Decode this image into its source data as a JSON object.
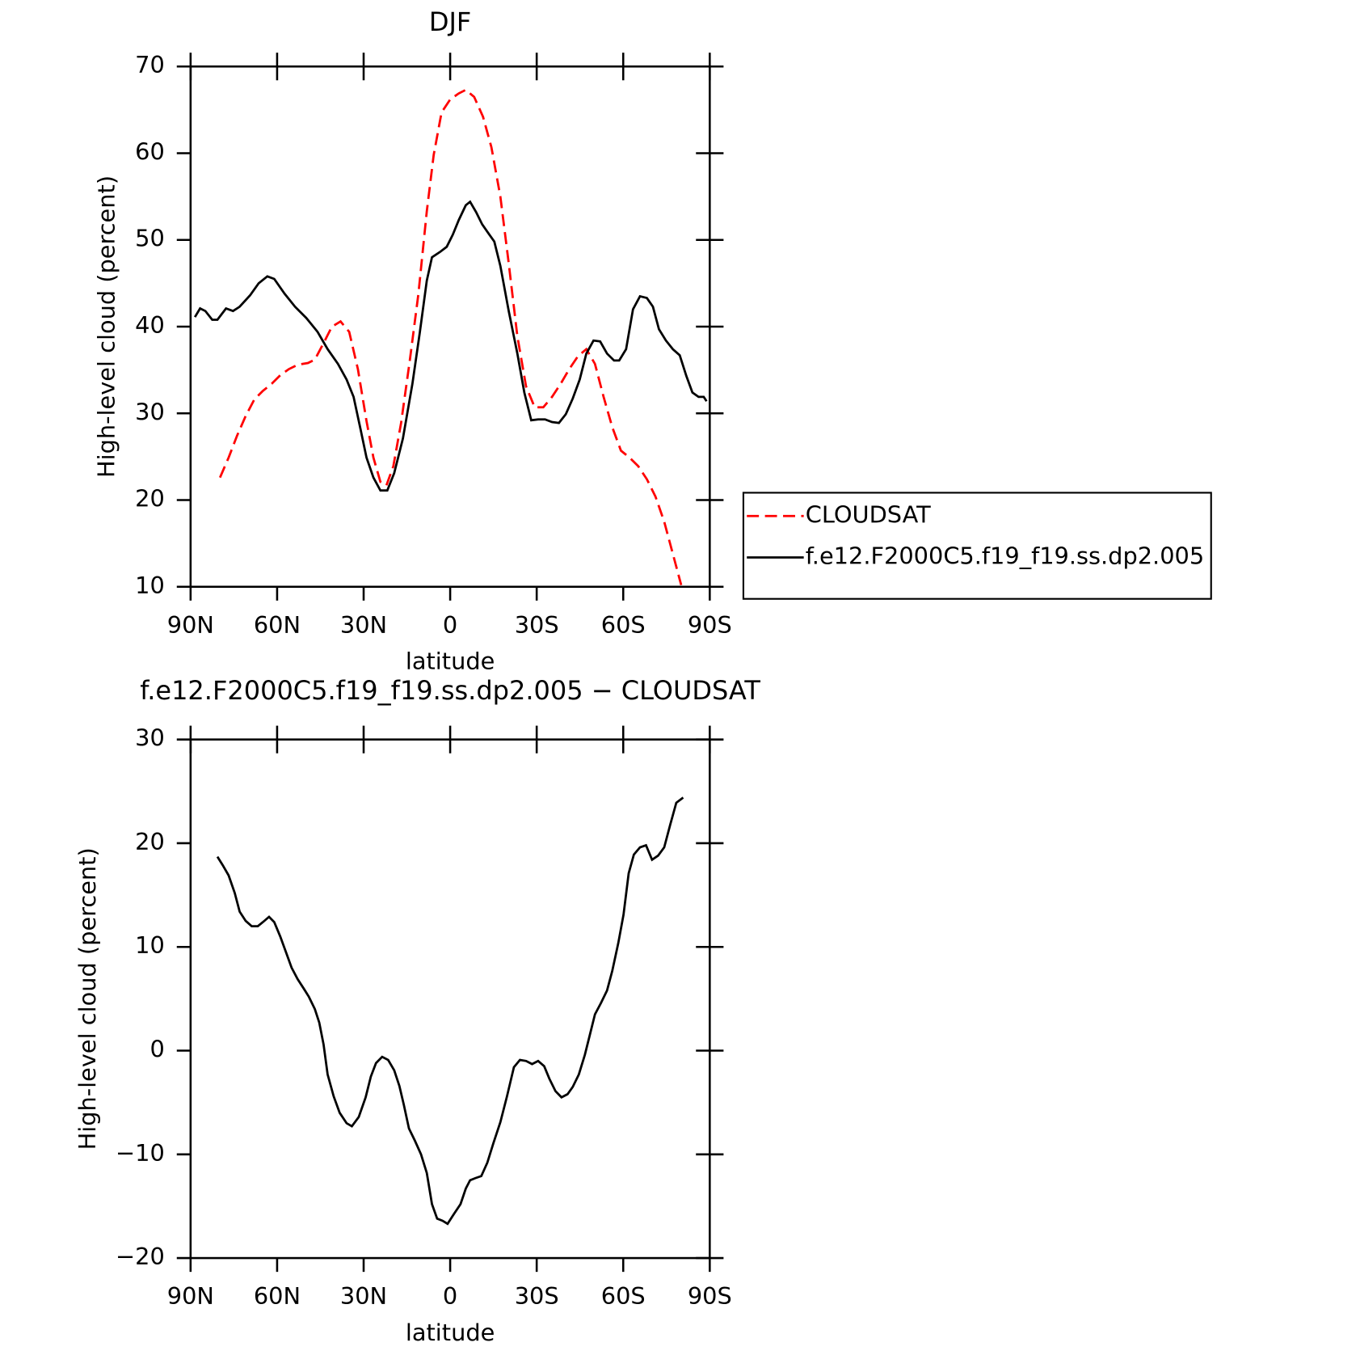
{
  "chart_data": [
    {
      "type": "line",
      "title": "DJF",
      "xlabel": "latitude",
      "ylabel": "High-level cloud (percent)",
      "xlim": [
        90,
        -90
      ],
      "xticks": [
        {
          "value": 90,
          "label": "90N"
        },
        {
          "value": 60,
          "label": "60N"
        },
        {
          "value": 30,
          "label": "30N"
        },
        0,
        {
          "value": -30,
          "label": "30S"
        },
        {
          "value": -60,
          "label": "60S"
        },
        {
          "value": -90,
          "label": "90S"
        }
      ],
      "ylim": [
        10,
        70
      ],
      "yticks": [
        10,
        20,
        30,
        40,
        50,
        60,
        70
      ],
      "legend": "right",
      "series": [
        {
          "name": "CLOUDSAT",
          "color": "#ff0000",
          "style": "dashed",
          "x": [
            79.8,
            76.8,
            73.9,
            70.9,
            67.9,
            64.9,
            61.9,
            58.9,
            55.9,
            52.9,
            49.3,
            46.9,
            43.9,
            41.0,
            38.0,
            35.0,
            32.0,
            29.0,
            26.6,
            24.2,
            22.1,
            19.7,
            17.0,
            14.0,
            11.0,
            8.1,
            5.7,
            3.0,
            0.0,
            -3.0,
            -5.4,
            -8.3,
            -11.4,
            -14.3,
            -17.4,
            -20.3,
            -23.3,
            -26.3,
            -29.3,
            -32.3,
            -35.3,
            -38.3,
            -41.3,
            -44.3,
            -47.2,
            -50.2,
            -53.2,
            -56.2,
            -59.2,
            -62.2,
            -65.2,
            -68.2,
            -71.2,
            -74.2,
            -77.2,
            -80.1
          ],
          "values": [
            22.6,
            24.9,
            27.4,
            29.7,
            31.6,
            32.6,
            33.4,
            34.4,
            35.1,
            35.6,
            35.8,
            36.2,
            38.1,
            40.0,
            40.6,
            39.4,
            35.1,
            29.1,
            24.9,
            22.1,
            21.7,
            23.9,
            28.9,
            36.1,
            43.8,
            53.3,
            59.8,
            64.7,
            66.2,
            66.9,
            67.3,
            66.5,
            64.2,
            60.7,
            55.0,
            47.3,
            38.9,
            33.1,
            30.7,
            30.7,
            31.9,
            33.4,
            35.1,
            36.6,
            37.4,
            35.7,
            31.9,
            28.4,
            25.7,
            24.9,
            23.9,
            22.4,
            20.4,
            17.5,
            13.8,
            10.2
          ]
        },
        {
          "name": "f.e12.F2000C5.f19_f19.ss.dp2.005",
          "color": "#000000",
          "style": "solid",
          "x": [
            88.5,
            86.7,
            84.9,
            82.5,
            80.7,
            77.7,
            75.3,
            73.0,
            69.4,
            66.4,
            63.4,
            61.0,
            57.4,
            53.8,
            49.9,
            46.0,
            42.5,
            38.9,
            35.9,
            33.5,
            31.1,
            29.0,
            26.6,
            24.2,
            21.8,
            19.4,
            16.4,
            13.1,
            10.5,
            8.1,
            6.3,
            3.6,
            1.2,
            -0.9,
            -3.0,
            -5.4,
            -6.9,
            -9.0,
            -11.1,
            -13.2,
            -15.3,
            -17.4,
            -20.3,
            -23.3,
            -25.7,
            -28.1,
            -30.5,
            -32.9,
            -35.3,
            -37.7,
            -40.1,
            -42.5,
            -44.9,
            -47.2,
            -49.7,
            -52.0,
            -54.4,
            -56.8,
            -58.6,
            -61.0,
            -63.4,
            -65.8,
            -68.2,
            -70.3,
            -72.4,
            -74.8,
            -77.2,
            -79.6,
            -81.9,
            -84.0,
            -86.1,
            -87.9,
            -88.9
          ],
          "values": [
            41.1,
            42.1,
            41.8,
            40.8,
            40.8,
            42.1,
            41.8,
            42.3,
            43.6,
            45.0,
            45.8,
            45.5,
            43.8,
            42.3,
            41.0,
            39.4,
            37.4,
            35.7,
            33.9,
            31.9,
            28.2,
            24.9,
            22.6,
            21.1,
            21.1,
            23.1,
            27.1,
            33.4,
            39.4,
            45.3,
            48.0,
            48.6,
            49.2,
            50.6,
            52.3,
            54.0,
            54.4,
            53.2,
            51.8,
            50.8,
            49.8,
            47.0,
            41.8,
            36.9,
            32.4,
            29.2,
            29.3,
            29.3,
            29.0,
            28.9,
            29.9,
            31.7,
            33.9,
            36.9,
            38.4,
            38.3,
            36.9,
            36.1,
            36.1,
            37.4,
            42.0,
            43.5,
            43.3,
            42.3,
            39.7,
            38.4,
            37.4,
            36.7,
            34.3,
            32.4,
            31.9,
            31.9,
            31.4
          ]
        }
      ]
    },
    {
      "type": "line",
      "title": "f.e12.F2000C5.f19_f19.ss.dp2.005 − CLOUDSAT",
      "xlabel": "latitude",
      "ylabel": "High-level cloud (percent)",
      "xlim": [
        90,
        -90
      ],
      "xticks": [
        {
          "value": 90,
          "label": "90N"
        },
        {
          "value": 60,
          "label": "60N"
        },
        {
          "value": 30,
          "label": "30N"
        },
        0,
        {
          "value": -30,
          "label": "30S"
        },
        {
          "value": -60,
          "label": "60S"
        },
        {
          "value": -90,
          "label": "90S"
        }
      ],
      "ylim": [
        -20,
        30
      ],
      "yticks": [
        {
          "value": -20,
          "label": "−20"
        },
        {
          "value": -10,
          "label": "−10"
        },
        0,
        10,
        20,
        30
      ],
      "color": "#000000",
      "x": [
        80.7,
        78.9,
        76.8,
        74.7,
        73.0,
        70.9,
        68.8,
        66.7,
        64.9,
        62.8,
        61.0,
        58.9,
        56.8,
        55.0,
        52.9,
        50.8,
        49.0,
        46.9,
        45.4,
        43.9,
        42.5,
        40.4,
        38.3,
        35.9,
        34.1,
        31.7,
        29.3,
        27.5,
        25.7,
        23.6,
        21.5,
        19.4,
        17.6,
        16.1,
        14.3,
        12.2,
        10.1,
        8.1,
        6.3,
        4.5,
        2.7,
        0.9,
        -1.2,
        -3.6,
        -5.4,
        -6.9,
        -8.7,
        -10.8,
        -12.9,
        -15.0,
        -17.4,
        -19.7,
        -22.1,
        -24.2,
        -26.3,
        -28.4,
        -30.5,
        -32.6,
        -34.4,
        -36.5,
        -38.6,
        -40.7,
        -42.5,
        -44.6,
        -46.7,
        -48.5,
        -50.2,
        -52.3,
        -54.4,
        -56.2,
        -58.3,
        -60.1,
        -61.9,
        -63.7,
        -65.8,
        -67.9,
        -70.0,
        -72.1,
        -74.2,
        -76.3,
        -78.4,
        -80.8
      ],
      "values": [
        18.7,
        17.9,
        16.9,
        15.2,
        13.4,
        12.5,
        12.0,
        12.0,
        12.4,
        12.9,
        12.4,
        11.0,
        9.4,
        8.0,
        6.9,
        6.0,
        5.2,
        4.0,
        2.7,
        0.6,
        -2.3,
        -4.4,
        -6.0,
        -7.0,
        -7.3,
        -6.4,
        -4.5,
        -2.5,
        -1.2,
        -0.6,
        -0.9,
        -1.9,
        -3.4,
        -5.2,
        -7.5,
        -8.7,
        -10.0,
        -11.8,
        -14.8,
        -16.2,
        -16.4,
        -16.7,
        -15.8,
        -14.8,
        -13.3,
        -12.5,
        -12.3,
        -12.1,
        -10.8,
        -8.9,
        -6.9,
        -4.4,
        -1.6,
        -0.9,
        -1.0,
        -1.3,
        -1.0,
        -1.5,
        -2.7,
        -3.9,
        -4.5,
        -4.2,
        -3.5,
        -2.3,
        -0.4,
        1.6,
        3.5,
        4.6,
        5.8,
        7.7,
        10.4,
        13.1,
        17.1,
        18.9,
        19.6,
        19.8,
        18.4,
        18.8,
        19.6,
        21.8,
        23.9,
        24.4
      ]
    }
  ]
}
